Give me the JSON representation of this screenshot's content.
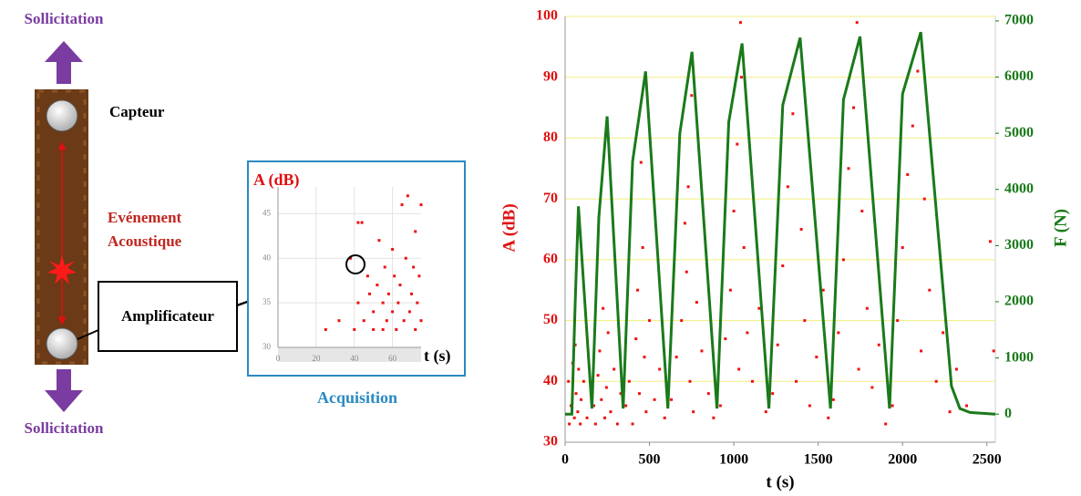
{
  "diagram": {
    "top_label": "Sollicitation",
    "sensor_label": "Capteur",
    "event_label": [
      "Evénement",
      "Acoustique"
    ],
    "amplifier_label": "Amplificateur",
    "bottom_label": "Sollicitation",
    "acquisition_label": "Acquisition"
  },
  "chart_data": [
    {
      "type": "scatter",
      "ylabel": "A (dB)",
      "xlabel": "t (s)",
      "xlim": [
        0,
        75
      ],
      "xticks": [
        0,
        20,
        40,
        60
      ],
      "ylim": [
        30,
        48
      ],
      "yticks": [
        30,
        35,
        40,
        45
      ],
      "grid": true,
      "series": [
        {
          "color": "#ee1111",
          "style": "markers",
          "x": [
            25,
            32,
            38,
            40,
            42,
            42,
            44,
            45,
            47,
            48,
            50,
            50,
            52,
            53,
            55,
            55,
            56,
            57,
            58,
            60,
            60,
            61,
            62,
            63,
            64,
            65,
            66,
            67,
            68,
            69,
            70,
            71,
            72,
            72,
            73,
            74,
            75,
            75
          ],
          "values": [
            32,
            33,
            40,
            32,
            35,
            44,
            44,
            33,
            38,
            36,
            32,
            34,
            37,
            42,
            32,
            35,
            39,
            33,
            36,
            34,
            41,
            38,
            32,
            35,
            37,
            46,
            33,
            40,
            47,
            34,
            36,
            39,
            43,
            32,
            35,
            38,
            46,
            33
          ]
        }
      ]
    },
    {
      "type": "scatter",
      "ylabel": "A (dB)",
      "y2label": "F (N)",
      "xlabel": "t (s)",
      "xlim": [
        0,
        2550
      ],
      "xticks": [
        0,
        500,
        1000,
        1500,
        2000,
        2500
      ],
      "ylim": [
        30,
        100
      ],
      "yticks": [
        30,
        40,
        50,
        60,
        70,
        80,
        90,
        100
      ],
      "y2lim": [
        -500,
        7080
      ],
      "y2ticks": [
        0,
        1000,
        2000,
        3000,
        4000,
        5000,
        6000,
        7000
      ],
      "grid": true,
      "grid_color": "#f3ee80",
      "series": [
        {
          "color": "#ee1111",
          "style": "markers",
          "x": [
            20,
            25,
            35,
            45,
            55,
            60,
            65,
            75,
            80,
            90,
            95,
            110,
            130,
            170,
            180,
            195,
            205,
            215,
            225,
            235,
            245,
            255,
            270,
            290,
            310,
            330,
            360,
            380,
            400,
            420,
            430,
            440,
            450,
            460,
            470,
            480,
            500,
            530,
            560,
            590,
            630,
            660,
            690,
            710,
            720,
            730,
            740,
            750,
            760,
            780,
            810,
            850,
            880,
            920,
            950,
            980,
            1000,
            1020,
            1030,
            1040,
            1045,
            1060,
            1080,
            1110,
            1150,
            1190,
            1230,
            1260,
            1290,
            1320,
            1350,
            1370,
            1380,
            1400,
            1420,
            1450,
            1490,
            1530,
            1560,
            1590,
            1620,
            1650,
            1680,
            1710,
            1730,
            1740,
            1760,
            1790,
            1820,
            1860,
            1900,
            1940,
            1970,
            2000,
            2030,
            2060,
            2090,
            2110,
            2130,
            2160,
            2200,
            2240,
            2280,
            2320,
            2380,
            2520,
            2540
          ],
          "values": [
            40,
            33,
            36,
            43,
            34,
            46,
            38,
            35,
            42,
            33,
            37,
            40,
            34,
            36,
            33,
            41,
            45,
            37,
            52,
            34,
            39,
            48,
            35,
            42,
            33,
            38,
            36,
            40,
            33,
            47,
            55,
            38,
            76,
            62,
            44,
            35,
            50,
            37,
            42,
            34,
            37,
            44,
            50,
            66,
            58,
            72,
            40,
            87,
            35,
            53,
            45,
            38,
            34,
            36,
            47,
            55,
            68,
            79,
            42,
            99,
            90,
            62,
            48,
            40,
            52,
            35,
            38,
            46,
            59,
            72,
            84,
            40,
            95,
            65,
            50,
            36,
            44,
            55,
            34,
            37,
            48,
            60,
            75,
            85,
            99,
            42,
            68,
            52,
            39,
            46,
            33,
            36,
            50,
            62,
            74,
            82,
            91,
            45,
            70,
            55,
            40,
            48,
            35,
            42,
            36,
            63,
            45
          ]
        },
        {
          "color": "#1a7a1a",
          "style": "line",
          "axis": "y2",
          "x": [
            0,
            40,
            60,
            79,
            159,
            200,
            249,
            344,
            400,
            477,
            609,
            680,
            752,
            900,
            970,
            1049,
            1208,
            1290,
            1393,
            1573,
            1650,
            1748,
            1923,
            2000,
            2108,
            2290,
            2340,
            2400,
            2550
          ],
          "values": [
            0,
            0,
            2000,
            3700,
            100,
            3500,
            5300,
            100,
            4500,
            6100,
            100,
            5000,
            6450,
            100,
            5200,
            6600,
            100,
            5500,
            6700,
            100,
            5600,
            6720,
            100,
            5700,
            6800,
            500,
            100,
            30,
            0
          ]
        }
      ]
    }
  ]
}
